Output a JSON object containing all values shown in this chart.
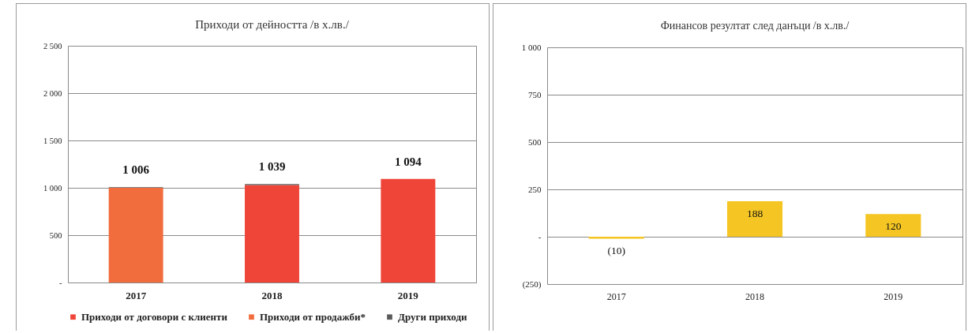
{
  "chart_data": [
    {
      "type": "bar",
      "title": "Приходи от дейността /в х.лв./",
      "categories": [
        "2017",
        "2018",
        "2019"
      ],
      "series": [
        {
          "name": "Приходи от договори с клиенти",
          "color": "#ef4538",
          "values": [
            null,
            1030,
            1094
          ]
        },
        {
          "name": "Приходи от продажби*",
          "color": "#f26d3d",
          "values": [
            1000,
            null,
            null
          ]
        },
        {
          "name": "Други приходи",
          "color": "#5a5a5a",
          "values": [
            6,
            9,
            null
          ]
        }
      ],
      "stacked": true,
      "totals": [
        "1 006",
        "1 039",
        "1 094"
      ],
      "ylim": [
        0,
        2500
      ],
      "yticks": [
        {
          "value": 0,
          "label": "-"
        },
        500,
        {
          "value": 1000,
          "label": "1 000"
        },
        {
          "value": 1500,
          "label": "1 500"
        },
        {
          "value": 2000,
          "label": "2 000"
        },
        {
          "value": 2500,
          "label": "2 500"
        }
      ],
      "grid": "y",
      "legend": "bottom"
    },
    {
      "type": "bar",
      "title": "Финансов резултат след данъци /в х.лв./",
      "categories": [
        "2017",
        "2018",
        "2019"
      ],
      "values": [
        -10,
        188,
        120
      ],
      "color": "#f5c623",
      "value_labels": [
        "(10)",
        "188",
        "120"
      ],
      "ylim": [
        -250,
        1000
      ],
      "yticks": [
        {
          "value": -250,
          "label": "(250)"
        },
        {
          "value": 0,
          "label": "-"
        },
        250,
        500,
        750,
        {
          "value": 1000,
          "label": "1 000"
        }
      ],
      "grid": "y"
    }
  ]
}
